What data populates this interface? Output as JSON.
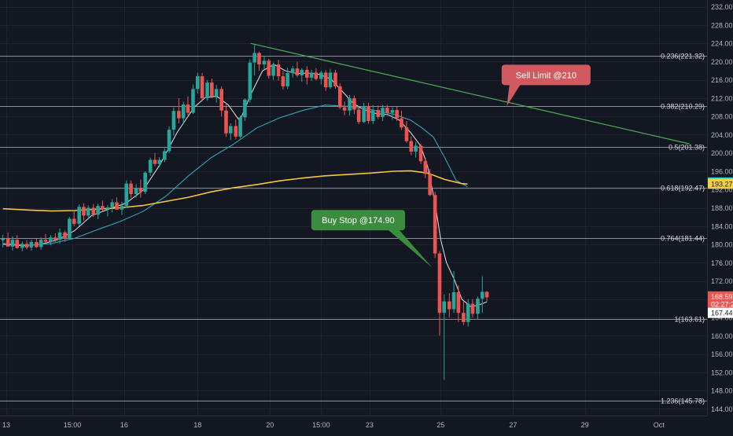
{
  "colors": {
    "background": "#131722",
    "grid": "#1e2230",
    "up": "#26a69a",
    "down": "#ef5350",
    "fib_line": "#b2b5be",
    "ma_fast": "#d1d4dc",
    "ma_mid": "#2fa5b8",
    "ma_slow": "#f5c542",
    "trendline": "#4caf50",
    "axis_text": "#b2b5be",
    "sell_callout": "#d05a5f",
    "buy_callout": "#3b8c3e",
    "badge_teal": "#26c6da",
    "badge_yellow": "#f5d142",
    "badge_red": "#ef5350",
    "badge_white": "#ffffff"
  },
  "chart_data": {
    "type": "candlestick",
    "title": "",
    "ylim": [
      142.5,
      233.5
    ],
    "grid": true,
    "price_axis_position": "right",
    "y_ticks": [
      "144.00",
      "148.00",
      "152.00",
      "156.00",
      "160.00",
      "164.00",
      "168.00",
      "172.00",
      "176.00",
      "180.00",
      "184.00",
      "188.00",
      "192.00",
      "196.00",
      "200.00",
      "204.00",
      "208.00",
      "212.00",
      "216.00",
      "220.00",
      "224.00",
      "228.00",
      "232.00"
    ],
    "x_ticks": [
      {
        "label": "13",
        "x": 0
      },
      {
        "label": "15:00",
        "x": 11.6
      },
      {
        "label": "16",
        "x": 20.7
      },
      {
        "label": "18",
        "x": 33.6
      },
      {
        "label": "20",
        "x": 46.3
      },
      {
        "label": "15:00",
        "x": 55.3
      },
      {
        "label": "23",
        "x": 63.8
      },
      {
        "label": "25",
        "x": 76.3
      },
      {
        "label": "27",
        "x": 89.0
      },
      {
        "label": "29",
        "x": 101.6
      },
      {
        "label": "Oct",
        "x": 114.6
      }
    ],
    "fib_levels": [
      {
        "label": "0.236(221.32)",
        "price": 221.32
      },
      {
        "label": "0.382(210.29)",
        "price": 210.29
      },
      {
        "label": "0.5(201.38)",
        "price": 201.38
      },
      {
        "label": "0.618(192.47)",
        "price": 192.47
      },
      {
        "label": "0.764(181.44)",
        "price": 181.44
      },
      {
        "label": "1(163.61)",
        "price": 163.61
      },
      {
        "label": "1.236(145.78)",
        "price": 145.78
      }
    ],
    "price_badges": [
      {
        "name": "badge-193-54",
        "text": "193.54",
        "price": 193.54,
        "color_key": "badge_teal"
      },
      {
        "name": "badge-193-27",
        "text": "193.27",
        "price": 193.27,
        "color_key": "badge_yellow"
      },
      {
        "name": "badge-last-price",
        "text": "168.59",
        "price": 168.59,
        "color_key": "badge_red"
      },
      {
        "name": "badge-countdown",
        "text": "02:27:27",
        "price": 166.9,
        "color_key": "badge_red"
      },
      {
        "name": "badge-167-44",
        "text": "167.44",
        "price": 165.0,
        "color_key": "badge_white"
      }
    ],
    "candles": [
      [
        -0.6,
        180.9,
        182.1,
        179.3,
        181.2
      ],
      [
        0.3,
        181.2,
        182.6,
        180.0,
        179.5
      ],
      [
        1.1,
        179.5,
        181.8,
        178.6,
        181.0
      ],
      [
        1.9,
        181.0,
        182.0,
        179.0,
        179.2
      ],
      [
        2.8,
        179.2,
        180.6,
        178.5,
        180.1
      ],
      [
        3.6,
        180.1,
        180.9,
        178.9,
        179.3
      ],
      [
        4.4,
        179.3,
        181.0,
        178.6,
        180.5
      ],
      [
        5.3,
        180.5,
        181.4,
        179.2,
        179.4
      ],
      [
        6.1,
        179.4,
        181.5,
        178.8,
        181.0
      ],
      [
        6.9,
        181.0,
        182.3,
        180.2,
        180.6
      ],
      [
        7.8,
        180.6,
        182.0,
        179.8,
        181.5
      ],
      [
        8.6,
        181.5,
        182.4,
        180.5,
        181.0
      ],
      [
        9.4,
        181.0,
        183.5,
        180.2,
        182.6
      ],
      [
        10.3,
        182.6,
        183.0,
        180.6,
        181.4
      ],
      [
        11.1,
        181.4,
        186.0,
        181.0,
        185.6
      ],
      [
        11.9,
        185.6,
        187.2,
        184.0,
        184.5
      ],
      [
        12.8,
        184.5,
        188.7,
        184.0,
        188.2
      ],
      [
        13.6,
        188.2,
        189.0,
        185.2,
        186.3
      ],
      [
        14.4,
        186.3,
        188.5,
        185.5,
        188.0
      ],
      [
        15.3,
        188.0,
        188.8,
        186.0,
        186.5
      ],
      [
        16.1,
        186.5,
        188.9,
        185.5,
        188.4
      ],
      [
        16.9,
        188.4,
        189.6,
        187.2,
        187.7
      ],
      [
        17.8,
        187.7,
        188.6,
        186.1,
        188.1
      ],
      [
        18.6,
        188.1,
        189.9,
        187.0,
        189.2
      ],
      [
        19.4,
        189.2,
        190.3,
        187.6,
        187.6
      ],
      [
        20.3,
        187.6,
        189.3,
        186.4,
        188.4
      ],
      [
        21.1,
        188.4,
        194.0,
        188.0,
        193.3
      ],
      [
        21.9,
        193.3,
        194.0,
        190.2,
        191.0
      ],
      [
        22.8,
        191.0,
        193.2,
        190.2,
        192.3
      ],
      [
        23.6,
        192.3,
        194.2,
        190.2,
        191.5
      ],
      [
        24.4,
        191.5,
        196.0,
        191.0,
        195.7
      ],
      [
        25.3,
        195.7,
        199.0,
        195.0,
        198.5
      ],
      [
        26.1,
        198.5,
        200.0,
        197.1,
        197.6
      ],
      [
        26.9,
        197.6,
        199.1,
        196.9,
        198.5
      ],
      [
        27.8,
        198.5,
        201.1,
        198.0,
        200.4
      ],
      [
        28.6,
        200.4,
        205.8,
        200.0,
        205.1
      ],
      [
        29.4,
        205.1,
        210.0,
        203.8,
        209.2
      ],
      [
        30.3,
        209.2,
        212.0,
        206.5,
        207.6
      ],
      [
        31.1,
        207.6,
        211.2,
        206.5,
        210.6
      ],
      [
        31.9,
        210.6,
        212.4,
        208.2,
        208.8
      ],
      [
        32.8,
        208.8,
        215.0,
        208.5,
        214.0
      ],
      [
        33.6,
        214.0,
        217.6,
        213.0,
        216.8
      ],
      [
        34.4,
        216.8,
        217.5,
        211.5,
        212.0
      ],
      [
        35.3,
        212.0,
        216.0,
        211.4,
        215.4
      ],
      [
        36.1,
        215.4,
        216.3,
        212.0,
        212.4
      ],
      [
        36.9,
        212.4,
        214.9,
        211.0,
        214.0
      ],
      [
        37.8,
        214.0,
        214.6,
        208.0,
        209.3
      ],
      [
        38.6,
        209.3,
        210.9,
        203.5,
        204.3
      ],
      [
        39.4,
        204.3,
        206.5,
        202.8,
        205.9
      ],
      [
        40.3,
        205.9,
        207.3,
        203.0,
        203.6
      ],
      [
        41.1,
        203.6,
        208.2,
        203.2,
        207.8
      ],
      [
        41.9,
        207.8,
        212.0,
        207.0,
        211.7
      ],
      [
        42.8,
        211.7,
        220.5,
        211.0,
        219.8
      ],
      [
        43.6,
        219.8,
        223.8,
        217.0,
        221.9
      ],
      [
        44.4,
        221.9,
        222.2,
        218.0,
        219.4
      ],
      [
        45.3,
        219.4,
        221.2,
        218.3,
        220.2
      ],
      [
        46.1,
        220.2,
        220.6,
        216.3,
        216.9
      ],
      [
        46.9,
        216.9,
        219.8,
        216.0,
        219.4
      ],
      [
        47.8,
        219.4,
        220.4,
        215.8,
        216.8
      ],
      [
        48.6,
        216.8,
        218.0,
        213.9,
        214.6
      ],
      [
        49.4,
        214.6,
        218.6,
        214.0,
        217.5
      ],
      [
        50.3,
        217.5,
        219.0,
        216.5,
        218.5
      ],
      [
        51.1,
        218.5,
        220.0,
        216.6,
        217.0
      ],
      [
        51.9,
        217.0,
        218.6,
        215.6,
        218.2
      ],
      [
        52.8,
        218.2,
        219.0,
        215.0,
        216.5
      ],
      [
        53.6,
        216.5,
        218.2,
        215.8,
        217.6
      ],
      [
        54.4,
        217.6,
        218.6,
        215.9,
        216.2
      ],
      [
        55.3,
        216.2,
        218.0,
        215.0,
        217.6
      ],
      [
        56.1,
        217.6,
        218.2,
        213.6,
        214.4
      ],
      [
        56.9,
        214.4,
        218.4,
        214.0,
        217.6
      ],
      [
        57.8,
        217.6,
        218.2,
        214.1,
        214.6
      ],
      [
        58.6,
        214.6,
        215.3,
        209.6,
        210.0
      ],
      [
        59.4,
        210.0,
        211.3,
        208.3,
        209.3
      ],
      [
        60.3,
        209.3,
        212.7,
        208.2,
        212.0
      ],
      [
        61.1,
        212.0,
        212.6,
        208.5,
        209.5
      ],
      [
        61.9,
        209.5,
        210.2,
        206.3,
        206.8
      ],
      [
        62.8,
        206.8,
        211.0,
        206.5,
        210.2
      ],
      [
        63.6,
        210.2,
        211.0,
        206.4,
        207.0
      ],
      [
        64.4,
        207.0,
        210.5,
        206.3,
        209.4
      ],
      [
        65.3,
        209.4,
        210.4,
        207.4,
        207.9
      ],
      [
        66.1,
        207.9,
        210.5,
        207.0,
        209.9
      ],
      [
        66.9,
        209.9,
        210.5,
        208.4,
        208.8
      ],
      [
        67.8,
        208.8,
        210.0,
        207.3,
        209.4
      ],
      [
        68.6,
        209.4,
        210.2,
        207.0,
        207.6
      ],
      [
        69.4,
        207.6,
        209.3,
        205.0,
        205.6
      ],
      [
        70.3,
        205.6,
        207.0,
        202.2,
        202.6
      ],
      [
        71.1,
        202.6,
        203.6,
        199.5,
        200.3
      ],
      [
        71.9,
        200.3,
        202.4,
        199.0,
        201.6
      ],
      [
        72.8,
        201.6,
        202.0,
        197.6,
        198.2
      ],
      [
        73.6,
        198.2,
        199.0,
        194.5,
        195.4
      ],
      [
        74.4,
        195.4,
        196.5,
        190.5,
        190.8
      ],
      [
        75.3,
        190.8,
        191.5,
        177.0,
        178.0
      ],
      [
        76.1,
        178.0,
        178.5,
        160.0,
        165.0
      ],
      [
        76.9,
        165.0,
        169.0,
        150.3,
        167.5
      ],
      [
        77.8,
        167.5,
        169.3,
        164.0,
        165.8
      ],
      [
        78.6,
        165.8,
        174.2,
        165.0,
        169.5
      ],
      [
        79.4,
        169.5,
        171.0,
        163.0,
        165.0
      ],
      [
        80.3,
        165.0,
        167.5,
        162.3,
        163.0
      ],
      [
        81.1,
        163.0,
        168.0,
        162.0,
        167.0
      ],
      [
        81.9,
        167.0,
        168.0,
        164.0,
        164.8
      ],
      [
        82.8,
        164.8,
        168.6,
        163.6,
        168.1
      ],
      [
        83.6,
        168.1,
        173.0,
        165.0,
        169.6
      ],
      [
        84.4,
        169.6,
        169.8,
        167.5,
        168.4
      ]
    ],
    "moving_averages": [
      {
        "name": "ma-fast",
        "color_key": "ma_fast",
        "points": [
          [
            -0.6,
            180.0
          ],
          [
            3,
            179.7
          ],
          [
            6,
            180.0
          ],
          [
            9,
            181.0
          ],
          [
            12,
            183.0
          ],
          [
            15,
            186.3
          ],
          [
            18,
            187.7
          ],
          [
            21,
            189.0
          ],
          [
            24,
            191.8
          ],
          [
            27,
            197.5
          ],
          [
            30,
            204.5
          ],
          [
            33,
            210.0
          ],
          [
            35,
            212.2
          ],
          [
            37,
            212.4
          ],
          [
            39,
            210.5
          ],
          [
            41,
            207.0
          ],
          [
            43,
            213.0
          ],
          [
            45,
            218.0
          ],
          [
            47,
            219.4
          ],
          [
            49,
            218.0
          ],
          [
            51,
            217.4
          ],
          [
            53,
            217.5
          ],
          [
            55,
            217.2
          ],
          [
            57,
            216.2
          ],
          [
            59,
            213.5
          ],
          [
            61,
            210.8
          ],
          [
            63,
            209.4
          ],
          [
            65,
            208.6
          ],
          [
            67,
            208.4
          ],
          [
            69,
            207.2
          ],
          [
            71,
            204.5
          ],
          [
            72.8,
            201.5
          ],
          [
            74,
            197.0
          ],
          [
            75.3,
            189.0
          ],
          [
            76.3,
            181.0
          ],
          [
            77.3,
            176.0
          ],
          [
            78.6,
            172.5
          ],
          [
            80,
            168.0
          ],
          [
            81.5,
            166.4
          ],
          [
            82.8,
            166.6
          ],
          [
            84.4,
            167.4
          ]
        ]
      },
      {
        "name": "ma-mid",
        "color_key": "ma_mid",
        "points": [
          [
            -0.6,
            180.2
          ],
          [
            4,
            179.8
          ],
          [
            8,
            180.2
          ],
          [
            12,
            181.3
          ],
          [
            16,
            183.2
          ],
          [
            20,
            185.0
          ],
          [
            24,
            187.2
          ],
          [
            28,
            190.5
          ],
          [
            32,
            195.0
          ],
          [
            36,
            199.0
          ],
          [
            40,
            202.0
          ],
          [
            44,
            205.5
          ],
          [
            48,
            207.7
          ],
          [
            52,
            209.3
          ],
          [
            56,
            210.5
          ],
          [
            60,
            210.2
          ],
          [
            64,
            209.5
          ],
          [
            68,
            208.5
          ],
          [
            71,
            207.2
          ],
          [
            73,
            205.5
          ],
          [
            75,
            203.5
          ],
          [
            77,
            199.0
          ],
          [
            79,
            194.0
          ],
          [
            81,
            192.6
          ]
        ]
      },
      {
        "name": "ma-slow",
        "color_key": "ma_slow",
        "points": [
          [
            -0.6,
            187.8
          ],
          [
            4,
            187.5
          ],
          [
            8,
            187.3
          ],
          [
            12,
            187.4
          ],
          [
            16,
            187.7
          ],
          [
            20,
            188.0
          ],
          [
            24,
            188.5
          ],
          [
            28,
            189.4
          ],
          [
            32,
            190.3
          ],
          [
            36,
            191.5
          ],
          [
            40,
            192.4
          ],
          [
            44,
            193.1
          ],
          [
            48,
            193.9
          ],
          [
            52,
            194.5
          ],
          [
            56,
            195.0
          ],
          [
            60,
            195.3
          ],
          [
            64,
            195.6
          ],
          [
            68,
            196.0
          ],
          [
            71,
            196.1
          ],
          [
            74,
            195.6
          ],
          [
            77,
            194.2
          ],
          [
            80,
            193.3
          ],
          [
            81,
            193.2
          ]
        ]
      }
    ],
    "trendline": [
      [
        42.9,
        224.0
      ],
      [
        120.0,
        202.0
      ]
    ],
    "annotations": [
      {
        "name": "sell-limit-callout",
        "text": "Sell Limit @210",
        "color_key": "sell_callout",
        "anchor": [
          87.9,
          210.3
        ],
        "box_center": [
          94.8,
          217.1
        ]
      },
      {
        "name": "buy-stop-callout",
        "text": "Buy Stop @174.90",
        "color_key": "buy_callout",
        "anchor": [
          74.8,
          174.9
        ],
        "box_center": [
          61.8,
          185.3
        ]
      }
    ]
  }
}
